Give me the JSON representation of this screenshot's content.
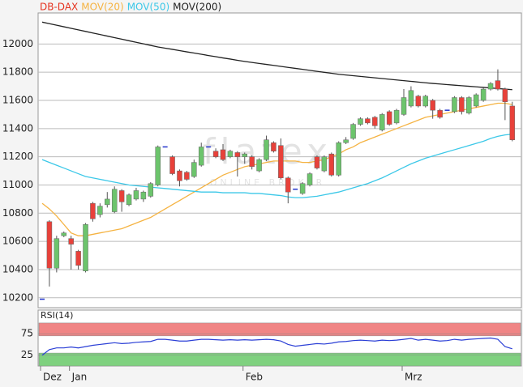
{
  "chart_data": [
    {
      "type": "candlestick",
      "name": "DB-DAX",
      "name_color": "#e5331f",
      "watermark": [
        "flatex",
        "ONLINE BROKER"
      ],
      "categories": [
        "Dez",
        null,
        null,
        null,
        "Jan",
        null,
        null,
        null,
        null,
        null,
        null,
        null,
        null,
        null,
        null,
        null,
        null,
        null,
        null,
        null,
        null,
        null,
        null,
        null,
        null,
        null,
        null,
        null,
        "Feb",
        null,
        null,
        null,
        null,
        null,
        null,
        null,
        null,
        null,
        null,
        null,
        null,
        null,
        null,
        null,
        null,
        null,
        null,
        null,
        null,
        null,
        "Mrz",
        null,
        null,
        null,
        null,
        null,
        null,
        null,
        null,
        null,
        null,
        null,
        null,
        null,
        null,
        null
      ],
      "open": [
        10190,
        10740,
        10410,
        10640,
        10620,
        10530,
        10390,
        10870,
        10790,
        10860,
        10810,
        10960,
        10860,
        10900,
        10900,
        10920,
        11000,
        11270,
        11200,
        11100,
        11090,
        11060,
        11140,
        11270,
        11240,
        11250,
        11200,
        11230,
        11200,
        11200,
        11100,
        11180,
        11300,
        11280,
        11050,
        10970,
        10940,
        11000,
        11200,
        11100,
        11220,
        11070,
        11300,
        11330,
        11430,
        11470,
        11480,
        11390,
        11520,
        11440,
        11500,
        11560,
        11630,
        11560,
        11600,
        11530,
        11530,
        11520,
        11620,
        11510,
        11560,
        11600,
        11680,
        11740,
        11680,
        11560
      ],
      "high": [
        10190,
        10750,
        10640,
        10670,
        10640,
        10540,
        10730,
        10880,
        10870,
        10950,
        10990,
        10970,
        10940,
        10980,
        10960,
        11020,
        11280,
        11270,
        11210,
        11110,
        11100,
        11180,
        11300,
        11270,
        11260,
        11290,
        11250,
        11240,
        11230,
        11210,
        11190,
        11350,
        11310,
        11330,
        11060,
        10970,
        11020,
        11090,
        11210,
        11210,
        11230,
        11310,
        11340,
        11440,
        11480,
        11480,
        11490,
        11510,
        11530,
        11540,
        11680,
        11700,
        11640,
        11640,
        11610,
        11540,
        11530,
        11630,
        11630,
        11630,
        11650,
        11690,
        11730,
        11820,
        11690,
        11590
      ],
      "low": [
        10190,
        10280,
        10380,
        10630,
        10400,
        10400,
        10380,
        10740,
        10770,
        10840,
        10800,
        10810,
        10850,
        10890,
        10880,
        10910,
        10990,
        11270,
        11070,
        10990,
        11030,
        11050,
        11130,
        11270,
        11190,
        11170,
        11190,
        11060,
        11150,
        11110,
        11090,
        11170,
        11230,
        11040,
        10870,
        10970,
        10930,
        10990,
        11110,
        11090,
        11060,
        11060,
        11290,
        11320,
        11420,
        11430,
        11400,
        11380,
        11420,
        11430,
        11490,
        11550,
        11550,
        11550,
        11470,
        11470,
        11530,
        11510,
        11500,
        11500,
        11550,
        11590,
        11670,
        11670,
        11460,
        11310
      ],
      "close": [
        10190,
        10410,
        10620,
        10660,
        10580,
        10430,
        10720,
        10760,
        10850,
        10900,
        10970,
        10880,
        10930,
        10960,
        10950,
        11010,
        11270,
        11270,
        11080,
        11030,
        11040,
        11160,
        11270,
        11270,
        11200,
        11180,
        11240,
        11200,
        11220,
        11130,
        11180,
        11320,
        11240,
        11050,
        10950,
        10970,
        11010,
        11080,
        11120,
        11200,
        11070,
        11300,
        11320,
        11430,
        11470,
        11440,
        11420,
        11500,
        11430,
        11530,
        11620,
        11670,
        11560,
        11630,
        11530,
        11480,
        11530,
        11620,
        11520,
        11620,
        11640,
        11680,
        11720,
        11680,
        11590,
        11320
      ],
      "up_color": "#6cc46c",
      "down_color": "#e8413a",
      "doji_color": "#2233cc",
      "series": [
        {
          "name": "MOV(20)",
          "color": "#f5b342",
          "values": [
            10870,
            10830,
            10780,
            10720,
            10660,
            10640,
            10640,
            10650,
            10660,
            10670,
            10680,
            10690,
            10710,
            10730,
            10750,
            10770,
            10800,
            10830,
            10860,
            10890,
            10920,
            10950,
            10980,
            11010,
            11040,
            11070,
            11090,
            11110,
            11130,
            11140,
            11150,
            11160,
            11170,
            11170,
            11170,
            11170,
            11160,
            11160,
            11170,
            11180,
            11200,
            11220,
            11250,
            11270,
            11300,
            11320,
            11340,
            11360,
            11380,
            11400,
            11420,
            11440,
            11460,
            11480,
            11490,
            11500,
            11510,
            11520,
            11530,
            11540,
            11550,
            11560,
            11570,
            11580,
            11580,
            11570
          ]
        },
        {
          "name": "MOV(50)",
          "color": "#3cc8e8",
          "values": [
            11180,
            11160,
            11140,
            11120,
            11100,
            11080,
            11060,
            11050,
            11040,
            11030,
            11020,
            11010,
            11000,
            10995,
            10990,
            10985,
            10980,
            10975,
            10970,
            10965,
            10960,
            10955,
            10950,
            10950,
            10950,
            10945,
            10945,
            10945,
            10945,
            10940,
            10940,
            10935,
            10930,
            10925,
            10915,
            10910,
            10910,
            10915,
            10920,
            10930,
            10940,
            10950,
            10965,
            10980,
            10995,
            11010,
            11030,
            11050,
            11075,
            11100,
            11125,
            11150,
            11170,
            11190,
            11205,
            11220,
            11235,
            11250,
            11265,
            11280,
            11295,
            11310,
            11330,
            11345,
            11355,
            11360
          ]
        },
        {
          "name": "MOV(200)",
          "color": "#222222",
          "values": [
            12155,
            12144,
            12133,
            12122,
            12111,
            12100,
            12089,
            12078,
            12067,
            12056,
            12045,
            12034,
            12023,
            12012,
            12001,
            11990,
            11979,
            11970,
            11962,
            11953,
            11944,
            11936,
            11927,
            11918,
            11910,
            11901,
            11893,
            11884,
            11876,
            11869,
            11862,
            11855,
            11848,
            11841,
            11834,
            11827,
            11820,
            11813,
            11806,
            11799,
            11792,
            11785,
            11780,
            11775,
            11770,
            11765,
            11760,
            11755,
            11750,
            11745,
            11740,
            11735,
            11730,
            11725,
            11720,
            11716,
            11712,
            11708,
            11704,
            11700,
            11696,
            11692,
            11688,
            11684,
            11680,
            11676
          ]
        }
      ],
      "ylim": [
        10130,
        12220
      ],
      "yticks": [
        10200,
        10400,
        10600,
        10800,
        11000,
        11200,
        11400,
        11600,
        11800,
        12000
      ],
      "grid": true
    },
    {
      "type": "line",
      "series": [
        {
          "name": "RSI(14)",
          "color": "#2b3fd6",
          "values": [
            25,
            38,
            42,
            42,
            44,
            42,
            45,
            48,
            50,
            52,
            54,
            52,
            53,
            55,
            56,
            57,
            62,
            62,
            60,
            58,
            58,
            60,
            62,
            62,
            61,
            60,
            61,
            60,
            61,
            60,
            61,
            62,
            61,
            58,
            50,
            46,
            48,
            50,
            52,
            51,
            53,
            56,
            57,
            59,
            60,
            59,
            58,
            60,
            59,
            60,
            62,
            64,
            60,
            62,
            60,
            58,
            59,
            62,
            60,
            62,
            63,
            64,
            65,
            62,
            45,
            40
          ]
        }
      ],
      "bands": [
        {
          "from": 70,
          "to": 100,
          "color": "#f08585"
        },
        {
          "from": 0,
          "to": 30,
          "color": "#7fd17f"
        }
      ],
      "ylim": [
        0,
        130
      ],
      "yticks": [
        25,
        75
      ],
      "grid": true
    }
  ]
}
